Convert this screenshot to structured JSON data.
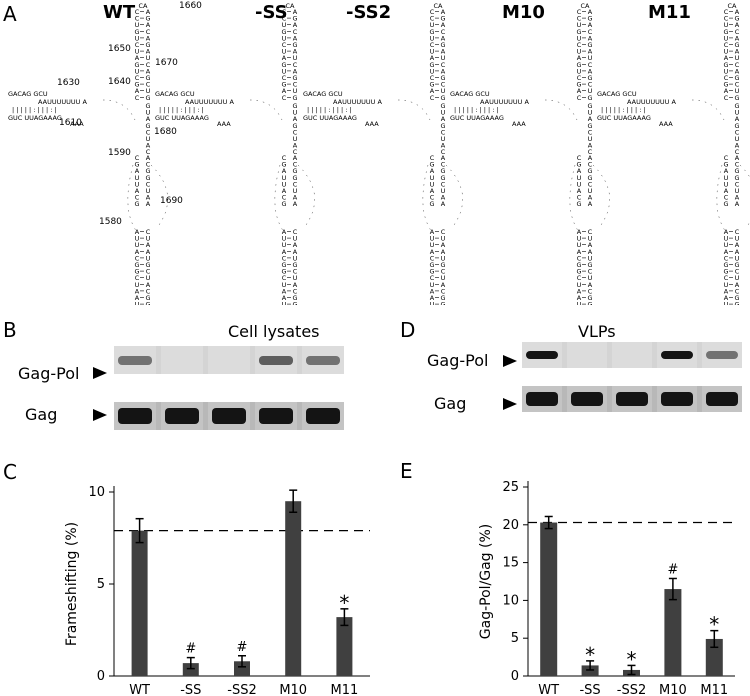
{
  "panels": {
    "a": "A",
    "b": "B",
    "c": "C",
    "d": "D",
    "e": "E"
  },
  "structures": {
    "titles": [
      "WT",
      "-SS",
      "-SS2",
      "M10",
      "M11"
    ],
    "wt_position_labels": [
      "1660",
      "1650",
      "1670",
      "1640",
      "1630",
      "1610",
      "1680",
      "1590",
      "1690",
      "1580"
    ],
    "stem_bases_top": [
      "C",
      "A",
      "C",
      "G",
      "U",
      "A",
      "G",
      "C",
      "U",
      "A",
      "C",
      "G",
      "U",
      "A",
      "A",
      "U",
      "G",
      "C",
      "U",
      "A",
      "C",
      "G",
      "G",
      "C",
      "A",
      "U",
      "C",
      "G",
      "U",
      "A",
      "G",
      "U"
    ],
    "stem_bases_bottom": [
      "C",
      "G",
      "A",
      "U",
      "U",
      "A",
      "C",
      "G",
      "G",
      "C",
      "U",
      "A",
      "A",
      "U",
      "G",
      "C",
      "U",
      "A",
      "C",
      "G",
      "G",
      "C",
      "U",
      "A",
      "A",
      "U",
      "G",
      "C",
      "G",
      "C"
    ],
    "left_arm": [
      "GACAG",
      "GCU",
      "AAUUUUUUU",
      "A",
      "GUC",
      "UUAGAAAG",
      "AAA"
    ]
  },
  "blot_b": {
    "title": "Cell lysates",
    "rows": [
      "Gag-Pol",
      "Gag"
    ],
    "gagpol_intensity": [
      0.55,
      0.05,
      0.05,
      0.65,
      0.55
    ],
    "gag_intensity": [
      1,
      1,
      1,
      1,
      1
    ]
  },
  "blot_d": {
    "title": "VLPs",
    "rows": [
      "Gag-Pol",
      "Gag"
    ],
    "gagpol_intensity": [
      1,
      0.05,
      0.05,
      1,
      0.55
    ],
    "gag_intensity": [
      1,
      1,
      1,
      1,
      1
    ]
  },
  "chart_data": [
    {
      "type": "bar",
      "panel": "C",
      "categories": [
        "WT",
        "-SS",
        "-SS2",
        "M10",
        "M11"
      ],
      "values": [
        7.9,
        0.7,
        0.8,
        9.5,
        3.2
      ],
      "errors": [
        0.65,
        0.3,
        0.3,
        0.6,
        0.45
      ],
      "annotations": [
        "",
        "#",
        "#",
        "",
        "*"
      ],
      "ylabel": "Frameshifting (%)",
      "xlabel": "",
      "ylim": [
        0,
        10
      ],
      "yticks": [
        "0",
        "5",
        "10"
      ],
      "reference_line": 7.9,
      "bar_color": "#404040"
    },
    {
      "type": "bar",
      "panel": "E",
      "categories": [
        "WT",
        "-SS",
        "-SS2",
        "M10",
        "M11"
      ],
      "values": [
        20.3,
        1.4,
        0.8,
        11.5,
        4.9
      ],
      "errors": [
        0.8,
        0.6,
        0.6,
        1.4,
        1.1
      ],
      "annotations": [
        "",
        "*",
        "*",
        "#",
        "*"
      ],
      "ylabel": "Gag-Pol/Gag (%)",
      "xlabel": "",
      "ylim": [
        0,
        25
      ],
      "yticks": [
        "0",
        "5",
        "10",
        "15",
        "20",
        "25"
      ],
      "reference_line": 20.3,
      "bar_color": "#404040"
    }
  ]
}
